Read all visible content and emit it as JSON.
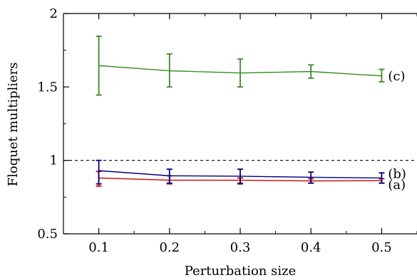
{
  "chart_data": {
    "type": "line",
    "xlabel": "Perturbation size",
    "ylabel": "Floquet multipliers",
    "xlim": [
      0.05,
      0.55
    ],
    "ylim": [
      0.5,
      2.0
    ],
    "xticks": [
      0.1,
      0.2,
      0.3,
      0.4,
      0.5
    ],
    "xtick_labels": [
      "0.1",
      "0.2",
      "0.3",
      "0.4",
      "0.5"
    ],
    "yticks": [
      0.5,
      1.0,
      1.5,
      2.0
    ],
    "ytick_labels": [
      "0.5",
      "1",
      "1.5",
      "2"
    ],
    "grid": false,
    "reference_line": {
      "y": 1.0,
      "style": "dashed",
      "color": "#000000"
    },
    "x": [
      0.1,
      0.2,
      0.3,
      0.4,
      0.5
    ],
    "series": [
      {
        "label": "(a)",
        "color": "#cc0000",
        "values": [
          0.88,
          0.865,
          0.865,
          0.86,
          0.862
        ],
        "err_low": [
          0.825,
          0.84,
          0.845,
          0.845,
          0.845
        ],
        "err_high": [
          0.925,
          0.895,
          0.88,
          0.875,
          0.875
        ]
      },
      {
        "label": "(b)",
        "color": "#00007f",
        "values": [
          0.93,
          0.895,
          0.892,
          0.885,
          0.88
        ],
        "err_low": [
          0.84,
          0.845,
          0.84,
          0.845,
          0.845
        ],
        "err_high": [
          1.0,
          0.94,
          0.94,
          0.92,
          0.915
        ]
      },
      {
        "label": "(c)",
        "color": "#3a8a2a",
        "values": [
          1.645,
          1.61,
          1.595,
          1.605,
          1.575
        ],
        "err_low": [
          1.445,
          1.5,
          1.5,
          1.56,
          1.535
        ],
        "err_high": [
          1.845,
          1.725,
          1.69,
          1.65,
          1.62
        ]
      }
    ]
  }
}
